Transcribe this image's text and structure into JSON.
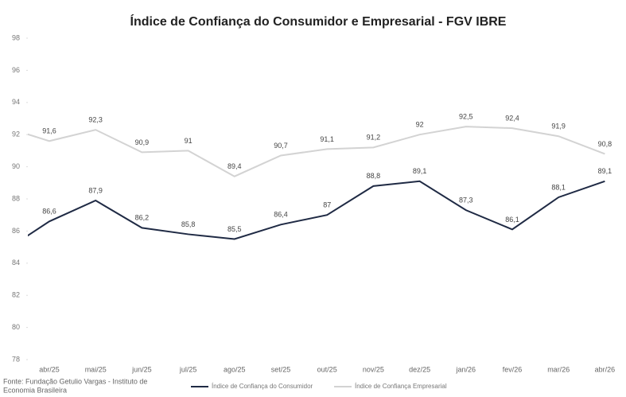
{
  "chart_data": {
    "type": "line",
    "title": "Índice de Confiança do Consumidor e Empresarial - FGV IBRE",
    "categories": [
      null,
      "abr/25",
      "mai/25",
      "jun/25",
      "jul/25",
      "ago/25",
      "set/25",
      "out/25",
      "nov/25",
      "dez/25",
      "jan/26",
      "fev/26",
      "mar/26",
      "abr/26"
    ],
    "series": [
      {
        "name": "Índice de Confiança do Consumidor",
        "color": "#1f2a44",
        "values": [
          84.7,
          86.6,
          87.9,
          86.2,
          85.8,
          85.5,
          86.4,
          87,
          88.8,
          89.1,
          87.3,
          86.1,
          88.1,
          89.1
        ],
        "value_labels": [
          null,
          "86,6",
          "87,9",
          "86,2",
          "85,8",
          "85,5",
          "86,4",
          "87",
          "88,8",
          "89,1",
          "87,3",
          "86,1",
          "88,1",
          "89,1"
        ]
      },
      {
        "name": "Índice de Confiança Empresarial",
        "color": "#d3d3d3",
        "values": [
          92.5,
          91.6,
          92.3,
          90.9,
          91,
          89.4,
          90.7,
          91.1,
          91.2,
          92,
          92.5,
          92.4,
          91.9,
          90.8
        ],
        "value_labels": [
          null,
          "91,6",
          "92,3",
          "90,9",
          "91",
          "89,4",
          "90,7",
          "91,1",
          "91,2",
          "92",
          "92,5",
          "92,4",
          "91,9",
          "90,8"
        ]
      }
    ],
    "ylim": [
      78,
      98
    ],
    "yticks": [
      78,
      80,
      82,
      84,
      86,
      88,
      90,
      92,
      94,
      96,
      98
    ],
    "grid": false,
    "source": [
      "Fonte: Fundação Getulio Vargas - Instituto de",
      "Economia Brasileira"
    ],
    "legend": "bottom"
  }
}
